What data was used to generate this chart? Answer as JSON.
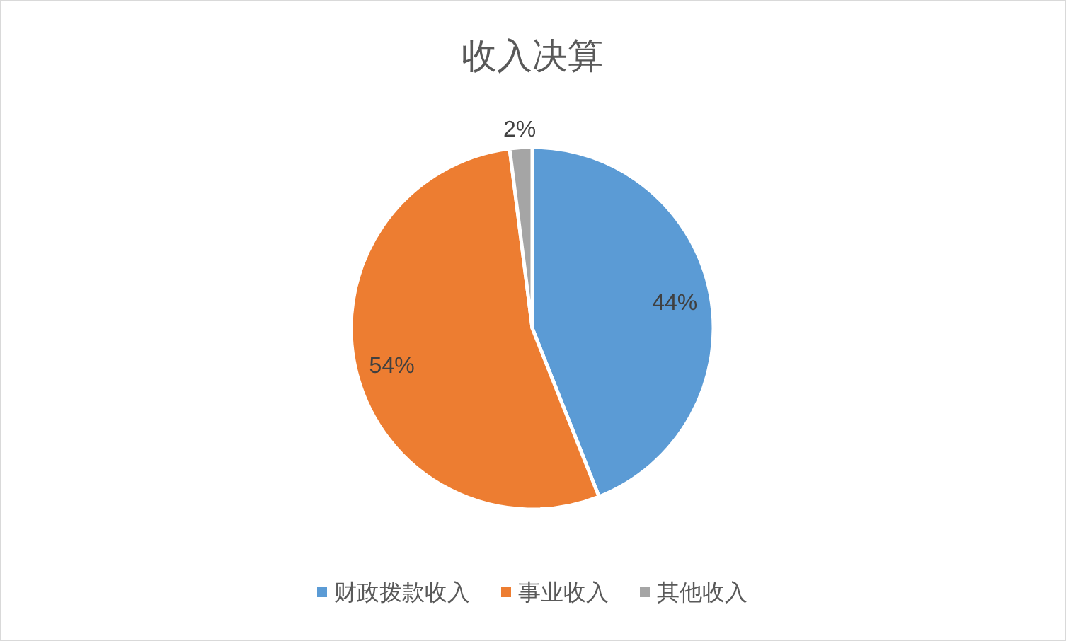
{
  "chart_data": {
    "type": "pie",
    "title": "收入决算",
    "categories": [
      "财政拨款收入",
      "事业收入",
      "其他收入"
    ],
    "values": [
      44,
      54,
      2
    ],
    "colors": [
      "#5b9bd5",
      "#ed7d31",
      "#a5a5a5"
    ],
    "value_labels": [
      "44%",
      "54%",
      "2%"
    ],
    "legend": "bottom"
  }
}
